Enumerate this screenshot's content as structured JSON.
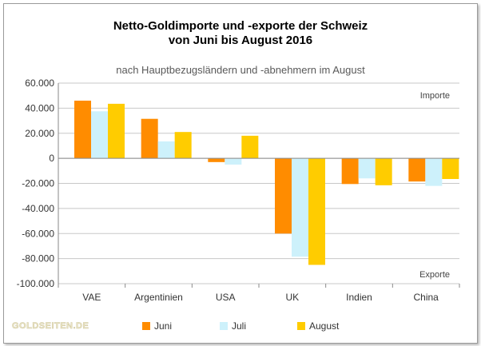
{
  "chart_data": {
    "type": "bar",
    "title_line1": "Netto-Goldimporte und -exporte der Schweiz",
    "title_line2": "von Juni bis August 2016",
    "subtitle": "nach Hauptbezugsländern und -abnehmern im August",
    "categories": [
      "VAE",
      "Argentinien",
      "USA",
      "UK",
      "Indien",
      "China"
    ],
    "series": [
      {
        "name": "Juni",
        "color": "#ff8c00",
        "values": [
          46000,
          31500,
          -3000,
          -60000,
          -20500,
          -18500
        ]
      },
      {
        "name": "Juli",
        "color": "#cdf1fb",
        "values": [
          37500,
          13500,
          -5000,
          -78500,
          -16000,
          -22000
        ]
      },
      {
        "name": "August",
        "color": "#ffcc00",
        "values": [
          43500,
          21000,
          18000,
          -85000,
          -21500,
          -16500
        ]
      }
    ],
    "ylim": [
      -100000,
      60000
    ],
    "yticks": [
      60000,
      40000,
      20000,
      0,
      -20000,
      -40000,
      -60000,
      -80000,
      -100000
    ],
    "ytick_labels": [
      "60.000",
      "40.000",
      "20.000",
      "0",
      "-20.000",
      "-40.000",
      "-60.000",
      "-80.000",
      "-100.000"
    ],
    "annotation_top": "Importe",
    "annotation_bottom": "Exporte",
    "grid": true,
    "legend_position": "bottom",
    "watermark": "GOLDSEITEN.DE"
  }
}
